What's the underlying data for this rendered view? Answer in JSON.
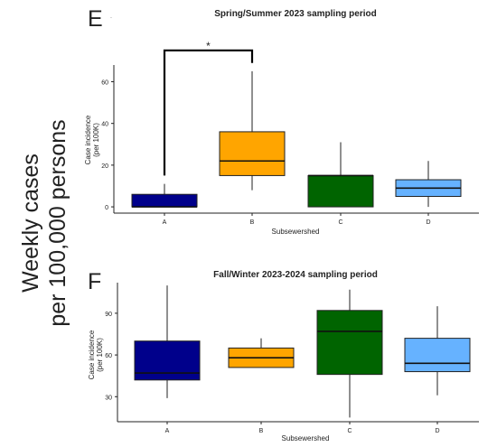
{
  "figure": {
    "y_label_line1": "Weekly cases",
    "y_label_line2": "per 100,000 persons"
  },
  "chart_data": [
    {
      "panel": "E",
      "type": "boxplot",
      "title": "Spring/Summer 2023 sampling period",
      "xlabel": "Subsewershed",
      "ylabel_line1": "Case incidence",
      "ylabel_line2": "(per 100K)",
      "ylim": [
        -3,
        68
      ],
      "yticks": [
        0,
        20,
        40,
        60
      ],
      "grid": false,
      "categories": [
        "A",
        "B",
        "C",
        "D"
      ],
      "boxes": [
        {
          "category": "A",
          "color": "#00008B",
          "whisker_low": 0,
          "q1": 0,
          "median": 0,
          "q3": 6,
          "whisker_high": 11
        },
        {
          "category": "B",
          "color": "#FFA500",
          "whisker_low": 8,
          "q1": 15,
          "median": 22,
          "q3": 36,
          "whisker_high": 65
        },
        {
          "category": "C",
          "color": "#006400",
          "whisker_low": 0,
          "q1": 0,
          "median": 15,
          "q3": 15,
          "whisker_high": 31
        },
        {
          "category": "D",
          "color": "#66B2FF",
          "whisker_low": 0,
          "q1": 5,
          "median": 9,
          "q3": 13,
          "whisker_high": 22
        }
      ],
      "significance": {
        "from": "A",
        "to": "B",
        "label": "*",
        "y": 75,
        "left_drop": 15,
        "right_drop": 69,
        "color": "#E03030"
      }
    },
    {
      "panel": "F",
      "type": "boxplot",
      "title": "Fall/Winter 2023-2024 sampling period",
      "xlabel": "Subsewershed",
      "ylabel_line1": "Case incidence",
      "ylabel_line2": "(per 100K)",
      "ylim": [
        12,
        112
      ],
      "yticks": [
        30,
        60,
        90
      ],
      "grid": false,
      "categories": [
        "A",
        "B",
        "C",
        "D"
      ],
      "boxes": [
        {
          "category": "A",
          "color": "#00008B",
          "whisker_low": 29,
          "q1": 42,
          "median": 47,
          "q3": 70,
          "whisker_high": 110
        },
        {
          "category": "B",
          "color": "#FFA500",
          "whisker_low": 51,
          "q1": 51,
          "median": 58,
          "q3": 65,
          "whisker_high": 72
        },
        {
          "category": "C",
          "color": "#006400",
          "whisker_low": 15,
          "q1": 46,
          "median": 77,
          "q3": 92,
          "whisker_high": 107
        },
        {
          "category": "D",
          "color": "#66B2FF",
          "whisker_low": 31,
          "q1": 48,
          "median": 54,
          "q3": 72,
          "whisker_high": 95
        }
      ]
    }
  ]
}
